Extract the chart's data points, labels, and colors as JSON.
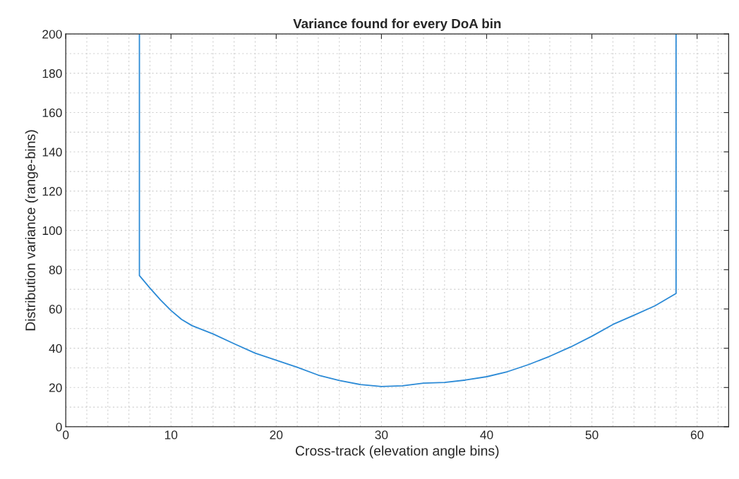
{
  "chart_data": {
    "type": "line",
    "title": "Variance found for every DoA bin",
    "xlabel": "Cross-track (elevation angle bins)",
    "ylabel": "Distribution variance (range-bins)",
    "series": [
      {
        "color": "#2b8ad6",
        "x": [
          7,
          7,
          8,
          9,
          10,
          11,
          12,
          14,
          16,
          18,
          20,
          22,
          24,
          26,
          28,
          30,
          32,
          34,
          36,
          38,
          40,
          42,
          44,
          46,
          48,
          50,
          52,
          54,
          56,
          58,
          58
        ],
        "values": [
          200,
          77,
          70.6,
          64.6,
          59.2,
          54.7,
          51.5,
          47.3,
          42.3,
          37.5,
          33.9,
          30.3,
          26.3,
          23.6,
          21.5,
          20.5,
          20.9,
          22.2,
          22.6,
          23.8,
          25.5,
          28.1,
          31.7,
          35.9,
          40.7,
          46.1,
          52.1,
          56.8,
          61.6,
          67.9,
          200
        ]
      }
    ],
    "xlim": [
      0,
      63
    ],
    "xticks": [
      0,
      10,
      20,
      30,
      40,
      50,
      60
    ],
    "ylim": [
      0,
      200
    ],
    "yticks": [
      0,
      20,
      40,
      60,
      80,
      100,
      120,
      140,
      160,
      180,
      200
    ],
    "grid": true,
    "marker": "none",
    "line_style": "solid"
  }
}
